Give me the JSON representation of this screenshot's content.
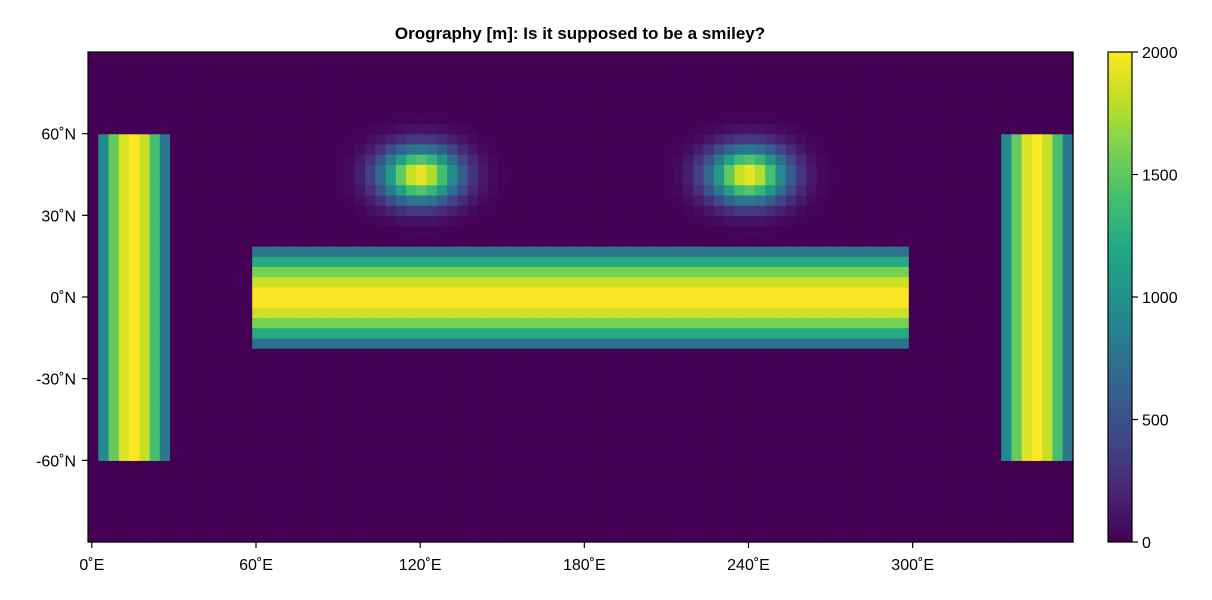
{
  "chart_data": {
    "type": "heatmap",
    "title": "Orography [m]: Is it supposed to be a smiley?",
    "xlabel": "",
    "ylabel": "",
    "colorbar_label": "",
    "xlim": [
      -1.4,
      358.6
    ],
    "ylim": [
      -90,
      90
    ],
    "x_ticks": [
      0,
      60,
      120,
      180,
      240,
      300
    ],
    "x_tick_labels": [
      "0˚E",
      "60˚E",
      "120˚E",
      "180˚E",
      "240˚E",
      "300˚E"
    ],
    "y_ticks": [
      60,
      30,
      0,
      -30,
      -60
    ],
    "y_tick_labels": [
      "60˚N",
      "30˚N",
      "0˚N",
      "-30˚N",
      "-60˚N"
    ],
    "color_range": [
      0,
      2000
    ],
    "colorbar_ticks": [
      0,
      500,
      1000,
      1500,
      2000
    ],
    "colorbar_tick_labels": [
      "0",
      "500",
      "1000",
      "1500",
      "2000"
    ],
    "colormap": "viridis",
    "grid_resolution_deg": [
      3.75,
      3.75
    ],
    "features": [
      {
        "name": "left-eye",
        "shape": "gaussian",
        "center_lon": 120,
        "center_lat": 45,
        "peak": 2000,
        "sigma_lon_deg": 10,
        "sigma_lat_deg": 7
      },
      {
        "name": "right-eye",
        "shape": "gaussian",
        "center_lon": 240,
        "center_lat": 45,
        "peak": 2000,
        "sigma_lon_deg": 10,
        "sigma_lat_deg": 7
      },
      {
        "name": "mouth",
        "shape": "bar",
        "lon_range": [
          60,
          300
        ],
        "lat_range": [
          -18.75,
          18.75
        ],
        "peak": 2000,
        "profile_axis": "lat"
      },
      {
        "name": "left-face-edge",
        "shape": "bar",
        "lon_range": [
          1.9,
          28.1
        ],
        "lat_range": [
          -60,
          60
        ],
        "peak": 2000,
        "profile_axis": "lon"
      },
      {
        "name": "right-face-edge",
        "shape": "bar",
        "lon_range": [
          331.9,
          358.1
        ],
        "lat_range": [
          -60,
          60
        ],
        "peak": 2000,
        "profile_axis": "lon"
      }
    ],
    "grid": false,
    "legend": "colorbar-right"
  }
}
